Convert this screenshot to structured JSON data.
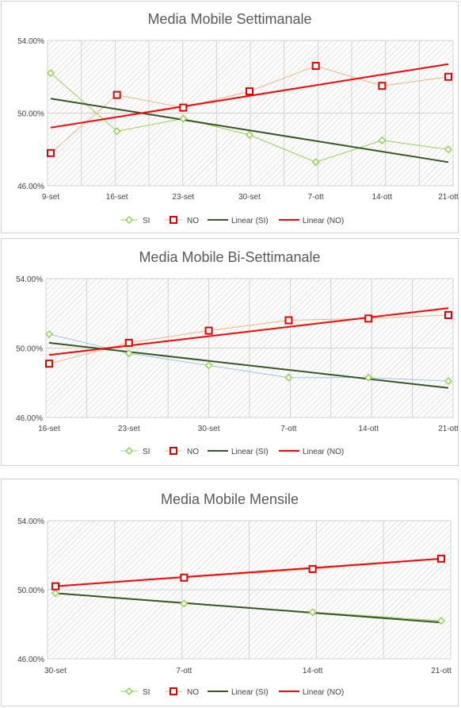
{
  "colors": {
    "si": "#92d050",
    "si_bi": "#9dc3e6",
    "no_line": "#f4b183",
    "no_marker": "#e00000",
    "linear_si": "#375623",
    "linear_no": "#ff0000",
    "grid": "#d0d0d0",
    "hatch": "#c8c8c8"
  },
  "legend_labels": [
    "SI",
    "NO",
    "Linear (SI)",
    "Linear (NO)"
  ],
  "chart_data": [
    {
      "type": "line",
      "title": "Media Mobile Settimanale",
      "categories": [
        "9-set",
        "16-set",
        "23-set",
        "30-set",
        "7-ott",
        "14-ott",
        "21-ott"
      ],
      "ylim": [
        46,
        54
      ],
      "yticks": [
        "46.00%",
        "50.00%",
        "54.00%"
      ],
      "x_tick_labels": [
        "9-set",
        "16-set",
        "23-set",
        "30-set",
        "7-ott",
        "14-ott",
        "21-ott"
      ],
      "grid": true,
      "legend": "bottom",
      "series": [
        {
          "name": "SI",
          "x": [
            0,
            1,
            2,
            3,
            4,
            5,
            6
          ],
          "values": [
            52.2,
            49.0,
            49.7,
            48.8,
            47.3,
            48.5,
            48.0
          ]
        },
        {
          "name": "NO",
          "x": [
            0,
            1,
            2,
            3,
            4,
            5,
            6
          ],
          "values": [
            47.8,
            51.0,
            50.3,
            51.2,
            52.6,
            51.5,
            52.0
          ]
        },
        {
          "name": "Linear (SI)",
          "x": [
            0,
            6
          ],
          "values": [
            50.8,
            47.3
          ]
        },
        {
          "name": "Linear (NO)",
          "x": [
            0,
            6
          ],
          "values": [
            49.2,
            52.7
          ]
        }
      ]
    },
    {
      "type": "line",
      "title": "Media Mobile Bi-Settimanale",
      "categories": [
        "16-set",
        "23-set",
        "30-set",
        "7-ott",
        "14-ott",
        "21-ott"
      ],
      "ylim": [
        46,
        54
      ],
      "yticks": [
        "46.00%",
        "50.00%",
        "54.00%"
      ],
      "x_tick_labels": [
        "16-set",
        "23-set",
        "30-set",
        "7-ott",
        "14-ott",
        "21-ott"
      ],
      "grid": true,
      "legend": "bottom",
      "series": [
        {
          "name": "SI",
          "x": [
            0,
            1,
            2,
            3,
            4,
            5
          ],
          "values": [
            50.8,
            49.7,
            49.0,
            48.3,
            48.3,
            48.1
          ]
        },
        {
          "name": "NO",
          "x": [
            0,
            1,
            2,
            3,
            4,
            5
          ],
          "values": [
            49.1,
            50.3,
            51.0,
            51.6,
            51.7,
            51.9
          ]
        },
        {
          "name": "Linear (SI)",
          "x": [
            0,
            5
          ],
          "values": [
            50.3,
            47.7
          ]
        },
        {
          "name": "Linear (NO)",
          "x": [
            0,
            5
          ],
          "values": [
            49.6,
            52.3
          ]
        }
      ]
    },
    {
      "type": "line",
      "title": "Media Mobile Mensile",
      "categories": [
        "30-set",
        "7-ott",
        "14-ott",
        "21-ott"
      ],
      "ylim": [
        46,
        54
      ],
      "yticks": [
        "46.00%",
        "50.00%",
        "54.00%"
      ],
      "x_tick_labels": [
        "30-set",
        "7-ott",
        "14-ott",
        "21-ott"
      ],
      "grid": true,
      "legend": "bottom",
      "series": [
        {
          "name": "SI",
          "x": [
            0,
            1,
            2,
            3
          ],
          "values": [
            49.8,
            49.2,
            48.7,
            48.2
          ]
        },
        {
          "name": "NO",
          "x": [
            0,
            1,
            2,
            3
          ],
          "values": [
            50.2,
            50.7,
            51.2,
            51.8
          ]
        },
        {
          "name": "Linear (SI)",
          "x": [
            0,
            3
          ],
          "values": [
            49.8,
            48.1
          ]
        },
        {
          "name": "Linear (NO)",
          "x": [
            0,
            3
          ],
          "values": [
            50.2,
            51.8
          ]
        }
      ]
    }
  ]
}
